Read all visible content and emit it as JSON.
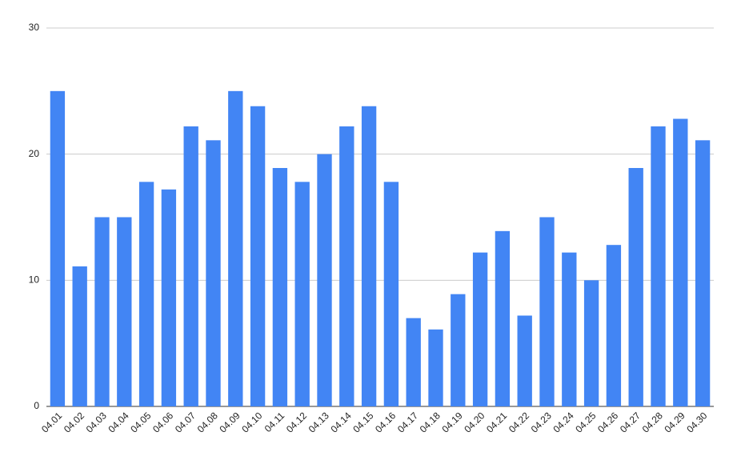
{
  "chart_data": {
    "type": "bar",
    "categories": [
      "04.01",
      "04.02",
      "04.03",
      "04.04",
      "04.05",
      "04.06",
      "04.07",
      "04.08",
      "04.09",
      "04.10",
      "04.11",
      "04.12",
      "04.13",
      "04.14",
      "04.15",
      "04.16",
      "04.17",
      "04.18",
      "04.19",
      "04.20",
      "04.21",
      "04.22",
      "04.23",
      "04.24",
      "04.25",
      "04.26",
      "04.27",
      "04.28",
      "04.29",
      "04.30"
    ],
    "values": [
      25,
      11.1,
      15,
      15,
      17.8,
      17.2,
      22.2,
      21.1,
      25,
      23.8,
      18.9,
      17.8,
      20,
      22.2,
      23.8,
      17.8,
      7,
      6.1,
      8.9,
      12.2,
      13.9,
      7.2,
      15,
      12.2,
      10,
      12.8,
      18.9,
      22.2,
      22.8,
      21.1
    ],
    "color": "#4285f4",
    "ylim": [
      0,
      30
    ],
    "yticks": [
      0,
      10,
      20,
      30
    ],
    "grid": true
  }
}
